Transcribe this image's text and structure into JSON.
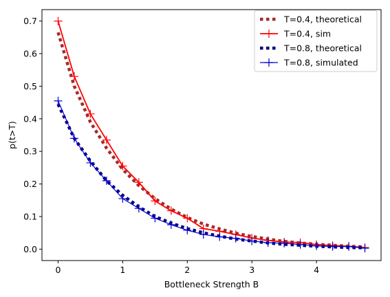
{
  "chart_data": {
    "type": "line",
    "xlabel": "Bottleneck Strength B",
    "ylabel": "p(t>T)",
    "xlim": [
      -0.25,
      5.0
    ],
    "ylim": [
      -0.035,
      0.735
    ],
    "xticks": [
      0,
      1,
      2,
      3,
      4
    ],
    "yticks": [
      0.0,
      0.1,
      0.2,
      0.3,
      0.4,
      0.5,
      0.6,
      0.7
    ],
    "xtick_labels": [
      "0",
      "1",
      "2",
      "3",
      "4"
    ],
    "ytick_labels": [
      "0.0",
      "0.1",
      "0.2",
      "0.3",
      "0.4",
      "0.5",
      "0.6",
      "0.7"
    ],
    "grid": false,
    "legend_position": "top-right",
    "series": [
      {
        "name": "T=0.4, theoretical",
        "style": "dotted",
        "color": "#a52a2a",
        "x": [
          0,
          0.25,
          0.5,
          0.75,
          1.0,
          1.25,
          1.5,
          1.75,
          2.0,
          2.25,
          2.5,
          2.75,
          3.0,
          3.25,
          3.5,
          3.75,
          4.0,
          4.25,
          4.5,
          4.75
        ],
        "y": [
          0.665,
          0.5,
          0.39,
          0.31,
          0.245,
          0.195,
          0.155,
          0.123,
          0.097,
          0.077,
          0.062,
          0.049,
          0.039,
          0.031,
          0.024,
          0.019,
          0.015,
          0.012,
          0.009,
          0.007
        ]
      },
      {
        "name": "T=0.4, sim",
        "style": "solid-markers",
        "color": "#ff0000",
        "x": [
          0,
          0.25,
          0.5,
          0.75,
          1.0,
          1.25,
          1.5,
          1.75,
          2.0,
          2.25,
          2.5,
          2.75,
          3.0,
          3.25,
          3.5,
          3.75,
          4.0,
          4.25,
          4.5,
          4.75
        ],
        "y": [
          0.7,
          0.53,
          0.415,
          0.335,
          0.255,
          0.205,
          0.148,
          0.118,
          0.095,
          0.063,
          0.055,
          0.045,
          0.034,
          0.027,
          0.022,
          0.02,
          0.014,
          0.011,
          0.009,
          0.005
        ]
      },
      {
        "name": "T=0.8, theoretical",
        "style": "dotted",
        "color": "#00007f",
        "x": [
          0,
          0.25,
          0.5,
          0.75,
          1.0,
          1.25,
          1.5,
          1.75,
          2.0,
          2.25,
          2.5,
          2.75,
          3.0,
          3.25,
          3.5,
          3.75,
          4.0,
          4.25,
          4.5,
          4.75
        ],
        "y": [
          0.445,
          0.34,
          0.27,
          0.21,
          0.165,
          0.13,
          0.1,
          0.08,
          0.063,
          0.05,
          0.04,
          0.031,
          0.025,
          0.019,
          0.015,
          0.012,
          0.009,
          0.007,
          0.005,
          0.004
        ]
      },
      {
        "name": "T=0.8, simulated",
        "style": "solid-markers",
        "color": "#0000cd",
        "x": [
          0,
          0.25,
          0.5,
          0.75,
          1.0,
          1.25,
          1.5,
          1.75,
          2.0,
          2.25,
          2.5,
          2.75,
          3.0,
          3.25,
          3.5,
          3.75,
          4.0,
          4.25,
          4.5,
          4.75
        ],
        "y": [
          0.455,
          0.34,
          0.265,
          0.21,
          0.155,
          0.125,
          0.095,
          0.075,
          0.058,
          0.045,
          0.038,
          0.033,
          0.025,
          0.02,
          0.018,
          0.014,
          0.01,
          0.008,
          0.008,
          0.003
        ]
      }
    ]
  }
}
